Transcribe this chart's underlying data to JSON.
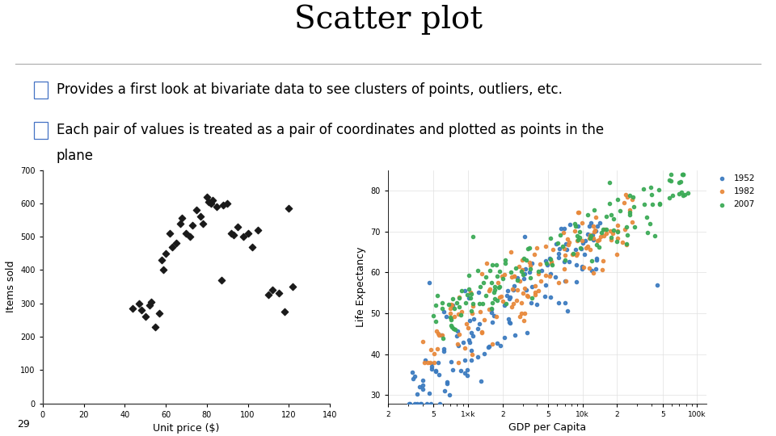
{
  "title": "Scatter plot",
  "title_fontsize": 28,
  "title_font": "serif",
  "bullet1": "Provides a first look at bivariate data to see clusters of points, outliers, etc.",
  "bullet2": "Each pair of values is treated as a pair of coordinates and plotted as points in the",
  "bullet2b": "plane",
  "page_number": "29",
  "plot1": {
    "xlabel": "Unit price ($)",
    "ylabel": "Items sold",
    "xlim": [
      0,
      140
    ],
    "ylim": [
      0,
      700
    ],
    "xticks": [
      0,
      20,
      40,
      60,
      80,
      100,
      120,
      140
    ],
    "yticks": [
      0,
      100,
      200,
      300,
      400,
      500,
      600,
      700
    ],
    "x": [
      44,
      47,
      48,
      50,
      52,
      53,
      55,
      57,
      58,
      59,
      60,
      62,
      63,
      65,
      67,
      68,
      70,
      72,
      73,
      75,
      77,
      78,
      80,
      81,
      82,
      83,
      85,
      87,
      88,
      90,
      92,
      93,
      95,
      98,
      100,
      102,
      105,
      110,
      112,
      115,
      118,
      120,
      122
    ],
    "y": [
      285,
      300,
      280,
      260,
      295,
      305,
      230,
      270,
      430,
      400,
      450,
      510,
      470,
      480,
      540,
      555,
      510,
      500,
      535,
      580,
      560,
      540,
      620,
      605,
      600,
      610,
      590,
      370,
      595,
      600,
      510,
      505,
      530,
      500,
      510,
      470,
      520,
      325,
      340,
      330,
      275,
      585,
      350
    ],
    "color": "#1a1a1a",
    "marker": "D",
    "marker_size": 18
  },
  "plot2": {
    "xlabel": "GDP per Capita",
    "ylabel": "Life Expectancy",
    "ylim": [
      28,
      85
    ],
    "yticks": [
      30,
      40,
      50,
      60,
      70,
      80
    ],
    "legend_labels": [
      "1952",
      "1982",
      "2007"
    ],
    "colors": [
      "#3a7abf",
      "#e8883a",
      "#3aaa55"
    ],
    "marker_size": 9
  },
  "background_color": "#ffffff",
  "text_color": "#000000",
  "line_color": "#aaaaaa",
  "bullet_fontsize": 12,
  "bullet_color": "#4472c4"
}
